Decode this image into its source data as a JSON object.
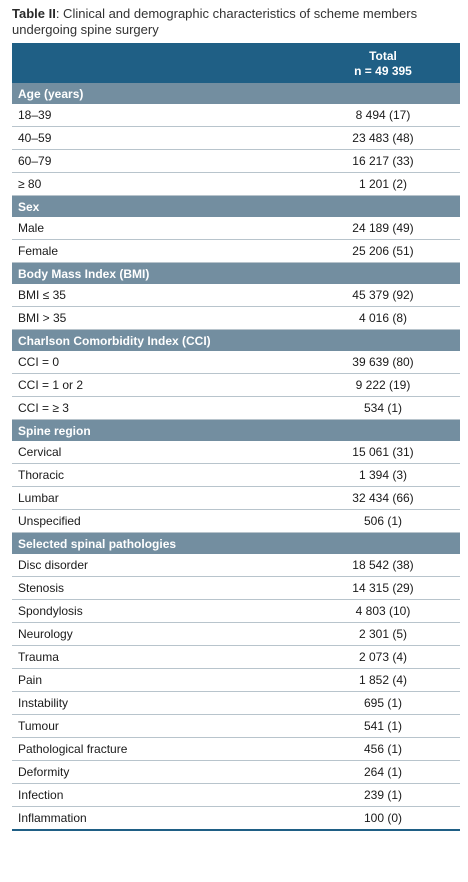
{
  "caption": {
    "label": "Table II",
    "text": ": Clinical and demographic characteristics of scheme members undergoing spine surgery"
  },
  "header": {
    "col1": "",
    "col2_line1": "Total",
    "col2_line2": "n = 49 395"
  },
  "sections": [
    {
      "title": "Age (years)",
      "rows": [
        {
          "label": "18–39",
          "value": "8 494 (17)"
        },
        {
          "label": "40–59",
          "value": "23 483 (48)"
        },
        {
          "label": "60–79",
          "value": "16 217 (33)"
        },
        {
          "label": "≥ 80",
          "value": "1 201 (2)"
        }
      ]
    },
    {
      "title": "Sex",
      "rows": [
        {
          "label": "Male",
          "value": "24 189 (49)"
        },
        {
          "label": "Female",
          "value": "25 206 (51)"
        }
      ]
    },
    {
      "title": "Body Mass Index (BMI)",
      "rows": [
        {
          "label": "BMI ≤ 35",
          "value": "45 379 (92)"
        },
        {
          "label": "BMI > 35",
          "value": "4 016 (8)"
        }
      ]
    },
    {
      "title": "Charlson Comorbidity Index (CCI)",
      "rows": [
        {
          "label": "CCI = 0",
          "value": "39 639 (80)"
        },
        {
          "label": "CCI = 1 or 2",
          "value": "9 222 (19)"
        },
        {
          "label": "CCI = ≥ 3",
          "value": "534 (1)"
        }
      ]
    },
    {
      "title": "Spine region",
      "rows": [
        {
          "label": "Cervical",
          "value": "15 061 (31)"
        },
        {
          "label": "Thoracic",
          "value": "1 394 (3)"
        },
        {
          "label": "Lumbar",
          "value": "32 434 (66)"
        },
        {
          "label": "Unspecified",
          "value": "506 (1)"
        }
      ]
    },
    {
      "title": "Selected spinal pathologies",
      "rows": [
        {
          "label": "Disc disorder",
          "value": "18 542 (38)"
        },
        {
          "label": "Stenosis",
          "value": "14 315 (29)"
        },
        {
          "label": "Spondylosis",
          "value": "4 803 (10)"
        },
        {
          "label": "Neurology",
          "value": "2 301 (5)"
        },
        {
          "label": "Trauma",
          "value": "2 073 (4)"
        },
        {
          "label": "Pain",
          "value": "1 852 (4)"
        },
        {
          "label": "Instability",
          "value": "695 (1)"
        },
        {
          "label": "Tumour",
          "value": "541 (1)"
        },
        {
          "label": "Pathological fracture",
          "value": "456 (1)"
        },
        {
          "label": "Deformity",
          "value": "264 (1)"
        },
        {
          "label": "Infection",
          "value": "239 (1)"
        },
        {
          "label": "Inflammation",
          "value": "100 (0)"
        }
      ]
    }
  ],
  "colors": {
    "header_bg": "#1f5f85",
    "section_bg": "#738ea0",
    "row_rule": "#b8c4cc"
  }
}
